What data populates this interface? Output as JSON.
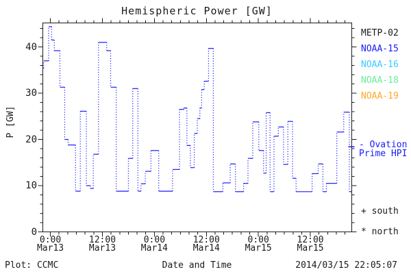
{
  "title": "Hemispheric Power [GW]",
  "axes": {
    "ylabel": "P [GW]",
    "xlabel": "Date and Time"
  },
  "legend": {
    "satellites": [
      {
        "label": "METP-02",
        "color": "#1a1a1a"
      },
      {
        "label": "NOAA-15",
        "color": "#1a1aff"
      },
      {
        "label": "NOAA-16",
        "color": "#33ccff"
      },
      {
        "label": "NOAA-18",
        "color": "#66ee99"
      },
      {
        "label": "NOAA-19",
        "color": "#ffa726"
      }
    ],
    "ovation": {
      "line1": "- Ovation",
      "line2": "Prime HPI",
      "color": "#1a1aff"
    },
    "south": "+ south",
    "north": "* north"
  },
  "footer": {
    "left": "Plot: CCMC",
    "right": "2014/03/15 22:05:07"
  },
  "chart_data": {
    "type": "line",
    "subtype": "stepped-dotted",
    "title": "Hemispheric Power [GW]",
    "xlabel": "Date and Time",
    "ylabel": "P [GW]",
    "x_unit": "hours since Mar13 0:00",
    "xlim": [
      -1.75,
      69.55
    ],
    "ylim": [
      0,
      45.2
    ],
    "grid": false,
    "x_major_ticks": [
      {
        "t": 0,
        "time": "0:00",
        "date": "Mar13"
      },
      {
        "t": 12,
        "time": "12:00",
        "date": "Mar13"
      },
      {
        "t": 24,
        "time": "0:00",
        "date": "Mar14"
      },
      {
        "t": 36,
        "time": "12:00",
        "date": "Mar14"
      },
      {
        "t": 48,
        "time": "0:00",
        "date": "Mar15"
      },
      {
        "t": 60,
        "time": "12:00",
        "date": "Mar15"
      }
    ],
    "x_minor_step_hours": 2,
    "y_major_ticks": [
      {
        "v": 0,
        "label": "0"
      },
      {
        "v": 10,
        "label": "10"
      },
      {
        "v": 20,
        "label": "20"
      },
      {
        "v": 30,
        "label": "30"
      },
      {
        "v": 40,
        "label": "40"
      }
    ],
    "y_minor_step": 2,
    "series": [
      {
        "name": "Ovation Prime HPI",
        "color": "#1a1aff",
        "marker_y_gw": 18.4,
        "t_end": 69.55,
        "points": [
          [
            -1.75,
            35.4
          ],
          [
            -1.55,
            37.0
          ],
          [
            -0.4,
            44.4
          ],
          [
            0.3,
            41.5
          ],
          [
            0.9,
            39.2
          ],
          [
            2.2,
            31.3
          ],
          [
            3.3,
            20.0
          ],
          [
            4.1,
            18.8
          ],
          [
            5.8,
            8.8
          ],
          [
            6.9,
            26.1
          ],
          [
            8.3,
            10.0
          ],
          [
            9.2,
            9.4
          ],
          [
            9.9,
            16.8
          ],
          [
            11.1,
            41.0
          ],
          [
            13.0,
            39.2
          ],
          [
            13.9,
            31.3
          ],
          [
            15.2,
            8.8
          ],
          [
            18.0,
            15.9
          ],
          [
            19.0,
            31.0
          ],
          [
            20.2,
            8.8
          ],
          [
            20.9,
            10.4
          ],
          [
            21.9,
            13.1
          ],
          [
            23.2,
            17.6
          ],
          [
            25.0,
            8.8
          ],
          [
            28.2,
            13.5
          ],
          [
            29.8,
            26.5
          ],
          [
            30.8,
            26.8
          ],
          [
            31.5,
            18.7
          ],
          [
            32.3,
            13.9
          ],
          [
            33.2,
            21.3
          ],
          [
            33.9,
            24.5
          ],
          [
            34.5,
            26.8
          ],
          [
            34.9,
            30.8
          ],
          [
            35.5,
            32.6
          ],
          [
            36.5,
            39.7
          ],
          [
            37.6,
            8.7
          ],
          [
            39.8,
            10.6
          ],
          [
            41.5,
            14.7
          ],
          [
            42.7,
            8.7
          ],
          [
            44.6,
            10.5
          ],
          [
            45.6,
            15.9
          ],
          [
            46.7,
            23.8
          ],
          [
            48.1,
            17.6
          ],
          [
            49.2,
            12.7
          ],
          [
            49.8,
            25.8
          ],
          [
            50.7,
            8.7
          ],
          [
            51.6,
            20.7
          ],
          [
            52.6,
            22.7
          ],
          [
            53.8,
            14.6
          ],
          [
            54.8,
            23.9
          ],
          [
            55.9,
            11.6
          ],
          [
            56.7,
            8.7
          ],
          [
            60.4,
            12.6
          ],
          [
            61.8,
            14.7
          ],
          [
            62.9,
            8.7
          ],
          [
            63.7,
            10.5
          ],
          [
            66.1,
            21.6
          ],
          [
            67.7,
            25.9
          ],
          [
            69.0,
            8.7
          ]
        ]
      }
    ]
  }
}
